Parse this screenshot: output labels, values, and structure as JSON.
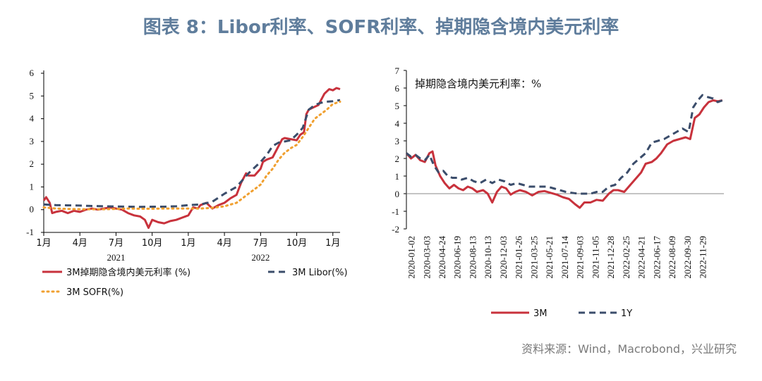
{
  "title": "图表 8：Libor利率、SOFR利率、掉期隐含境内美元利率",
  "source": "资料来源：Wind，Macrobond，兴业研究",
  "chart_data": [
    {
      "type": "line",
      "x_ticks": [
        "1月",
        "4月",
        "7月",
        "10月",
        "1月",
        "4月",
        "7月",
        "10月",
        "1月"
      ],
      "x_ticks_month_index": [
        0,
        3,
        6,
        9,
        12,
        15,
        18,
        21,
        24
      ],
      "x_years": [
        {
          "label": "2021",
          "month_index": 6
        },
        {
          "label": "2022",
          "month_index": 18
        }
      ],
      "xlim": [
        0,
        24.6
      ],
      "ylim": [
        -1,
        6
      ],
      "y_ticks": [
        "-1",
        "0",
        "1",
        "2",
        "3",
        "4",
        "5",
        "6"
      ],
      "legend_position": "bottom",
      "series": [
        {
          "name": "3M掉期隐含境内美元利率 (%)",
          "color": "#c8323c",
          "style": "solid",
          "points": [
            [
              0,
              0.4
            ],
            [
              0.2,
              0.55
            ],
            [
              0.5,
              0.3
            ],
            [
              0.7,
              -0.15
            ],
            [
              1,
              -0.1
            ],
            [
              1.5,
              -0.05
            ],
            [
              2,
              -0.15
            ],
            [
              2.5,
              -0.05
            ],
            [
              3,
              -0.1
            ],
            [
              3.5,
              0
            ],
            [
              4,
              0.05
            ],
            [
              4.5,
              0
            ],
            [
              5,
              0.05
            ],
            [
              5.5,
              0.1
            ],
            [
              6,
              0.05
            ],
            [
              6.5,
              0
            ],
            [
              7,
              -0.15
            ],
            [
              7.5,
              -0.25
            ],
            [
              8,
              -0.3
            ],
            [
              8.4,
              -0.45
            ],
            [
              8.7,
              -0.8
            ],
            [
              9,
              -0.45
            ],
            [
              9.5,
              -0.55
            ],
            [
              10,
              -0.6
            ],
            [
              10.5,
              -0.5
            ],
            [
              11,
              -0.45
            ],
            [
              11.5,
              -0.35
            ],
            [
              12,
              -0.25
            ],
            [
              12.4,
              0.1
            ],
            [
              12.8,
              0.05
            ],
            [
              13,
              0.2
            ],
            [
              13.5,
              0.3
            ],
            [
              14,
              0.05
            ],
            [
              14.5,
              0.2
            ],
            [
              15,
              0.3
            ],
            [
              15.5,
              0.5
            ],
            [
              16,
              0.65
            ],
            [
              16.4,
              1.2
            ],
            [
              16.8,
              1.6
            ],
            [
              17,
              1.5
            ],
            [
              17.5,
              1.5
            ],
            [
              18,
              1.8
            ],
            [
              18.2,
              2.1
            ],
            [
              18.5,
              2.2
            ],
            [
              19,
              2.3
            ],
            [
              19.4,
              2.7
            ],
            [
              19.8,
              3.1
            ],
            [
              20,
              3.15
            ],
            [
              20.5,
              3.1
            ],
            [
              21,
              3.05
            ],
            [
              21.3,
              3.3
            ],
            [
              21.6,
              3.4
            ],
            [
              21.8,
              4.2
            ],
            [
              22,
              4.4
            ],
            [
              22.4,
              4.5
            ],
            [
              22.8,
              4.6
            ],
            [
              23,
              4.8
            ],
            [
              23.3,
              5.1
            ],
            [
              23.7,
              5.3
            ],
            [
              24,
              5.25
            ],
            [
              24.3,
              5.35
            ],
            [
              24.6,
              5.3
            ]
          ]
        },
        {
          "name": "3M Libor(%)",
          "color": "#3b4d6b",
          "style": "dashed",
          "points": [
            [
              0,
              0.23
            ],
            [
              1,
              0.2
            ],
            [
              2,
              0.19
            ],
            [
              3,
              0.18
            ],
            [
              4,
              0.16
            ],
            [
              5,
              0.15
            ],
            [
              6,
              0.14
            ],
            [
              7,
              0.13
            ],
            [
              8,
              0.12
            ],
            [
              9,
              0.13
            ],
            [
              10,
              0.13
            ],
            [
              11,
              0.15
            ],
            [
              12,
              0.2
            ],
            [
              13,
              0.23
            ],
            [
              14,
              0.35
            ],
            [
              15,
              0.7
            ],
            [
              16,
              1.0
            ],
            [
              17,
              1.6
            ],
            [
              18,
              2.1
            ],
            [
              18.5,
              2.4
            ],
            [
              19,
              2.8
            ],
            [
              19.5,
              2.95
            ],
            [
              20,
              3.0
            ],
            [
              20.5,
              3.05
            ],
            [
              21,
              3.3
            ],
            [
              21.5,
              3.6
            ],
            [
              22,
              4.4
            ],
            [
              22.5,
              4.6
            ],
            [
              23,
              4.7
            ],
            [
              23.5,
              4.75
            ],
            [
              24,
              4.77
            ],
            [
              24.6,
              4.82
            ]
          ]
        },
        {
          "name": "3M SOFR(%)",
          "color": "#f0a030",
          "style": "dotted",
          "points": [
            [
              0,
              0.1
            ],
            [
              1,
              0.05
            ],
            [
              2,
              0.03
            ],
            [
              3,
              0.02
            ],
            [
              4,
              0.02
            ],
            [
              5,
              0.02
            ],
            [
              6,
              0.03
            ],
            [
              7,
              0.05
            ],
            [
              8,
              0.04
            ],
            [
              9,
              0.04
            ],
            [
              10,
              0.05
            ],
            [
              11,
              0.05
            ],
            [
              12,
              0.05
            ],
            [
              13,
              0.05
            ],
            [
              14,
              0.08
            ],
            [
              15,
              0.15
            ],
            [
              16,
              0.3
            ],
            [
              16.5,
              0.5
            ],
            [
              17,
              0.7
            ],
            [
              17.5,
              0.9
            ],
            [
              18,
              1.1
            ],
            [
              18.5,
              1.5
            ],
            [
              19,
              1.8
            ],
            [
              19.5,
              2.2
            ],
            [
              20,
              2.5
            ],
            [
              20.5,
              2.7
            ],
            [
              21,
              2.85
            ],
            [
              21.5,
              3.2
            ],
            [
              22,
              3.6
            ],
            [
              22.5,
              4.0
            ],
            [
              23,
              4.2
            ],
            [
              23.5,
              4.4
            ],
            [
              24,
              4.65
            ],
            [
              24.6,
              4.75
            ]
          ]
        }
      ]
    },
    {
      "type": "line",
      "annotation": "掉期隐含境内美元利率：%",
      "ylim": [
        -2,
        7
      ],
      "y_ticks": [
        "-2",
        "-1",
        "0",
        "1",
        "2",
        "3",
        "4",
        "5",
        "6",
        "7"
      ],
      "x_ticks": [
        "2020-01-02",
        "2020-03-03",
        "2020-04-24",
        "2020-06-19",
        "2020-08-13",
        "2020-10-13",
        "2020-12-03",
        "2021-01-26",
        "2021-03-25",
        "2021-05-21",
        "2021-07-14",
        "2021-09-03",
        "2021-11-05",
        "2021-12-28",
        "2022-02-25",
        "2022-04-21",
        "2022-06-17",
        "2022-08-09",
        "2022-09-30",
        "2022-11-29"
      ],
      "x_index_range": [
        0,
        20.7
      ],
      "legend_position": "bottom",
      "series": [
        {
          "name": "3M",
          "color": "#c8323c",
          "style": "solid",
          "points": [
            [
              0,
              2.3
            ],
            [
              0.3,
              2.0
            ],
            [
              0.6,
              2.2
            ],
            [
              0.9,
              1.9
            ],
            [
              1.2,
              1.8
            ],
            [
              1.5,
              2.3
            ],
            [
              1.7,
              2.4
            ],
            [
              1.9,
              1.6
            ],
            [
              2.2,
              1.0
            ],
            [
              2.5,
              0.6
            ],
            [
              2.8,
              0.3
            ],
            [
              3.1,
              0.5
            ],
            [
              3.4,
              0.3
            ],
            [
              3.7,
              0.2
            ],
            [
              4,
              0.4
            ],
            [
              4.3,
              0.3
            ],
            [
              4.6,
              0.1
            ],
            [
              5,
              0.2
            ],
            [
              5.3,
              0
            ],
            [
              5.6,
              -0.5
            ],
            [
              5.9,
              0.1
            ],
            [
              6.2,
              0.4
            ],
            [
              6.5,
              0.3
            ],
            [
              6.8,
              -0.05
            ],
            [
              7.1,
              0.1
            ],
            [
              7.4,
              0.2
            ],
            [
              7.8,
              0.1
            ],
            [
              8.2,
              -0.1
            ],
            [
              8.6,
              0.1
            ],
            [
              9,
              0.15
            ],
            [
              9.4,
              0.05
            ],
            [
              9.8,
              -0.05
            ],
            [
              10.2,
              -0.2
            ],
            [
              10.6,
              -0.3
            ],
            [
              11,
              -0.6
            ],
            [
              11.3,
              -0.8
            ],
            [
              11.6,
              -0.5
            ],
            [
              12,
              -0.5
            ],
            [
              12.4,
              -0.35
            ],
            [
              12.8,
              -0.4
            ],
            [
              13.2,
              0
            ],
            [
              13.5,
              0.2
            ],
            [
              13.8,
              0.2
            ],
            [
              14.2,
              0.1
            ],
            [
              14.6,
              0.5
            ],
            [
              15,
              0.9
            ],
            [
              15.3,
              1.2
            ],
            [
              15.6,
              1.7
            ],
            [
              16,
              1.8
            ],
            [
              16.3,
              2.0
            ],
            [
              16.6,
              2.3
            ],
            [
              17,
              2.8
            ],
            [
              17.4,
              3.0
            ],
            [
              17.8,
              3.1
            ],
            [
              18.2,
              3.2
            ],
            [
              18.5,
              3.1
            ],
            [
              18.8,
              4.3
            ],
            [
              19.1,
              4.5
            ],
            [
              19.4,
              4.9
            ],
            [
              19.7,
              5.2
            ],
            [
              20,
              5.3
            ],
            [
              20.3,
              5.25
            ],
            [
              20.6,
              5.3
            ]
          ]
        },
        {
          "name": "1Y",
          "color": "#3b4d6b",
          "style": "dashed",
          "points": [
            [
              0,
              2.3
            ],
            [
              0.3,
              2.1
            ],
            [
              0.6,
              2.2
            ],
            [
              0.9,
              2.0
            ],
            [
              1.2,
              1.9
            ],
            [
              1.5,
              2.2
            ],
            [
              1.8,
              1.6
            ],
            [
              2.1,
              1.2
            ],
            [
              2.4,
              1.3
            ],
            [
              2.7,
              1.0
            ],
            [
              3,
              0.9
            ],
            [
              3.3,
              0.9
            ],
            [
              3.6,
              0.8
            ],
            [
              4,
              0.9
            ],
            [
              4.4,
              0.7
            ],
            [
              4.8,
              0.6
            ],
            [
              5.2,
              0.8
            ],
            [
              5.6,
              0.6
            ],
            [
              6,
              0.8
            ],
            [
              6.4,
              0.7
            ],
            [
              6.8,
              0.5
            ],
            [
              7.2,
              0.6
            ],
            [
              7.6,
              0.5
            ],
            [
              8,
              0.4
            ],
            [
              8.4,
              0.4
            ],
            [
              8.8,
              0.4
            ],
            [
              9.2,
              0.4
            ],
            [
              9.6,
              0.3
            ],
            [
              10,
              0.2
            ],
            [
              10.4,
              0.1
            ],
            [
              10.8,
              0.05
            ],
            [
              11.2,
              0
            ],
            [
              11.6,
              0
            ],
            [
              12,
              0
            ],
            [
              12.4,
              0.1
            ],
            [
              12.8,
              0.1
            ],
            [
              13.2,
              0.4
            ],
            [
              13.6,
              0.5
            ],
            [
              14,
              0.9
            ],
            [
              14.4,
              1.2
            ],
            [
              14.8,
              1.7
            ],
            [
              15.2,
              2.0
            ],
            [
              15.6,
              2.3
            ],
            [
              16,
              2.9
            ],
            [
              16.4,
              3.0
            ],
            [
              16.8,
              3.1
            ],
            [
              17.2,
              3.3
            ],
            [
              17.6,
              3.5
            ],
            [
              18,
              3.7
            ],
            [
              18.4,
              3.5
            ],
            [
              18.7,
              4.9
            ],
            [
              19,
              5.3
            ],
            [
              19.3,
              5.6
            ],
            [
              19.6,
              5.5
            ],
            [
              20,
              5.4
            ],
            [
              20.3,
              5.2
            ],
            [
              20.6,
              5.3
            ]
          ]
        }
      ]
    }
  ]
}
